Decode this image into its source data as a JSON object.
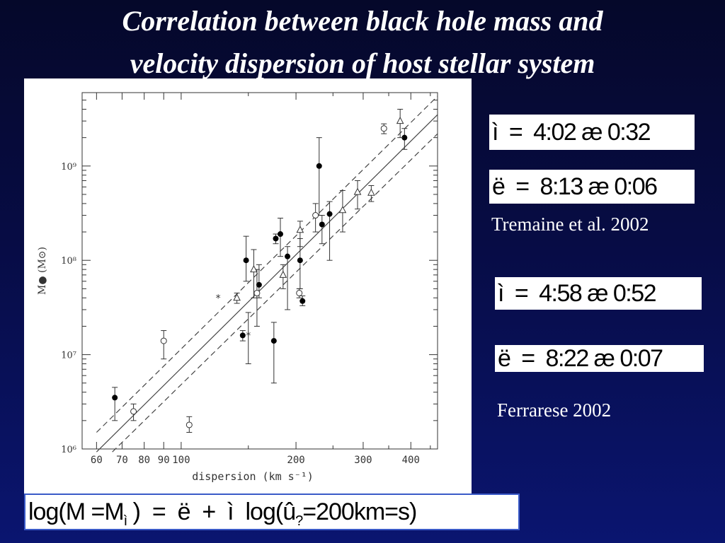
{
  "slide": {
    "title_line1": "Correlation between black hole mass and",
    "title_line2": "velocity dispersion of host stellar system",
    "eq1": "ì  =  4:02 æ 0:32",
    "eq2": "ë  =  8:13 æ 0:06",
    "ref1": "Tremaine et al. 2002",
    "eq3": "ì  =  4:58 æ 0:52",
    "eq4": "ë  =  8:22 æ 0:07",
    "ref2": "Ferrarese 2002",
    "formula_main": "log(M =M",
    "formula_sub1": "ì",
    "formula_mid": " )  =  ë  +  ì  log(û",
    "formula_sub2": "?",
    "formula_end": "=200km=s)"
  },
  "chart_data": {
    "type": "scatter",
    "xlabel": "dispersion  (km s⁻¹)",
    "ylabel": "M● (M⊙)",
    "x_scale": "log",
    "y_scale": "log",
    "xlim": [
      55,
      470
    ],
    "ylim": [
      1000000,
      6000000000
    ],
    "x_ticks": [
      60,
      70,
      80,
      90,
      100,
      200,
      300,
      400
    ],
    "x_tick_labels": [
      "60",
      "70",
      "80",
      "90",
      "100",
      "200",
      "300",
      "400"
    ],
    "y_ticks": [
      1000000,
      10000000,
      100000000,
      1000000000
    ],
    "y_tick_labels": [
      "10⁶",
      "10⁷",
      "10⁸",
      "10⁹"
    ],
    "series": [
      {
        "marker": "filled-circle",
        "points": [
          {
            "x": 67,
            "y": 3500000,
            "ylo": 2000000,
            "yhi": 4500000
          },
          {
            "x": 148,
            "y": 100000000,
            "ylo": 60000000,
            "yhi": 180000000
          },
          {
            "x": 145,
            "y": 16000000,
            "ylo": 14000000,
            "yhi": 18000000
          },
          {
            "x": 160,
            "y": 55000000,
            "ylo": 40000000,
            "yhi": 90000000
          },
          {
            "x": 175,
            "y": 14000000,
            "ylo": 5000000,
            "yhi": 22000000
          },
          {
            "x": 177,
            "y": 170000000,
            "ylo": 150000000,
            "yhi": 190000000
          },
          {
            "x": 182,
            "y": 190000000,
            "ylo": 110000000,
            "yhi": 280000000
          },
          {
            "x": 190,
            "y": 110000000,
            "ylo": 30000000,
            "yhi": 140000000
          },
          {
            "x": 205,
            "y": 100000000,
            "ylo": 50000000,
            "yhi": 170000000
          },
          {
            "x": 208,
            "y": 37000000,
            "ylo": 33000000,
            "yhi": 42000000
          },
          {
            "x": 230,
            "y": 1000000000,
            "ylo": 300000000,
            "yhi": 2000000000
          },
          {
            "x": 234,
            "y": 240000000,
            "ylo": 150000000,
            "yhi": 300000000
          },
          {
            "x": 245,
            "y": 310000000,
            "ylo": 100000000,
            "yhi": 420000000
          },
          {
            "x": 385,
            "y": 2000000000,
            "ylo": 1500000000,
            "yhi": 2500000000
          }
        ]
      },
      {
        "marker": "open-circle",
        "points": [
          {
            "x": 75,
            "y": 2500000,
            "ylo": 2000000,
            "yhi": 3000000
          },
          {
            "x": 90,
            "y": 14000000,
            "ylo": 9000000,
            "yhi": 18000000
          },
          {
            "x": 105,
            "y": 1800000,
            "ylo": 1500000,
            "yhi": 2200000
          },
          {
            "x": 158,
            "y": 45000000,
            "ylo": 20000000,
            "yhi": 80000000
          },
          {
            "x": 204,
            "y": 45000000,
            "ylo": 40000000,
            "yhi": 50000000
          },
          {
            "x": 225,
            "y": 300000000,
            "ylo": 200000000,
            "yhi": 400000000
          },
          {
            "x": 340,
            "y": 2500000000,
            "ylo": 2200000000,
            "yhi": 2800000000
          }
        ]
      },
      {
        "marker": "open-triangle",
        "points": [
          {
            "x": 140,
            "y": 40000000,
            "ylo": 35000000,
            "yhi": 45000000
          },
          {
            "x": 155,
            "y": 80000000,
            "ylo": 40000000,
            "yhi": 130000000
          },
          {
            "x": 185,
            "y": 70000000,
            "ylo": 50000000,
            "yhi": 90000000
          },
          {
            "x": 205,
            "y": 210000000,
            "ylo": 140000000,
            "yhi": 260000000
          },
          {
            "x": 265,
            "y": 340000000,
            "ylo": 200000000,
            "yhi": 550000000
          },
          {
            "x": 290,
            "y": 530000000,
            "ylo": 350000000,
            "yhi": 700000000
          },
          {
            "x": 315,
            "y": 520000000,
            "ylo": 420000000,
            "yhi": 620000000
          },
          {
            "x": 375,
            "y": 3000000000,
            "ylo": 2000000000,
            "yhi": 4000000000
          }
        ]
      },
      {
        "marker": "asterisk",
        "points": [
          {
            "x": 125,
            "y": 40000000
          },
          {
            "x": 150,
            "y": 16000000,
            "ylo": 8000000,
            "yhi": 28000000
          }
        ]
      }
    ],
    "fit_lines": [
      {
        "style": "solid",
        "points": [
          [
            60,
            930000
          ],
          [
            470,
            3500000000
          ]
        ]
      },
      {
        "style": "dashed",
        "points": [
          [
            60,
            1500000
          ],
          [
            470,
            5500000000
          ]
        ]
      },
      {
        "style": "dashed",
        "points": [
          [
            66,
            930000
          ],
          [
            470,
            2200000000
          ]
        ]
      }
    ]
  }
}
